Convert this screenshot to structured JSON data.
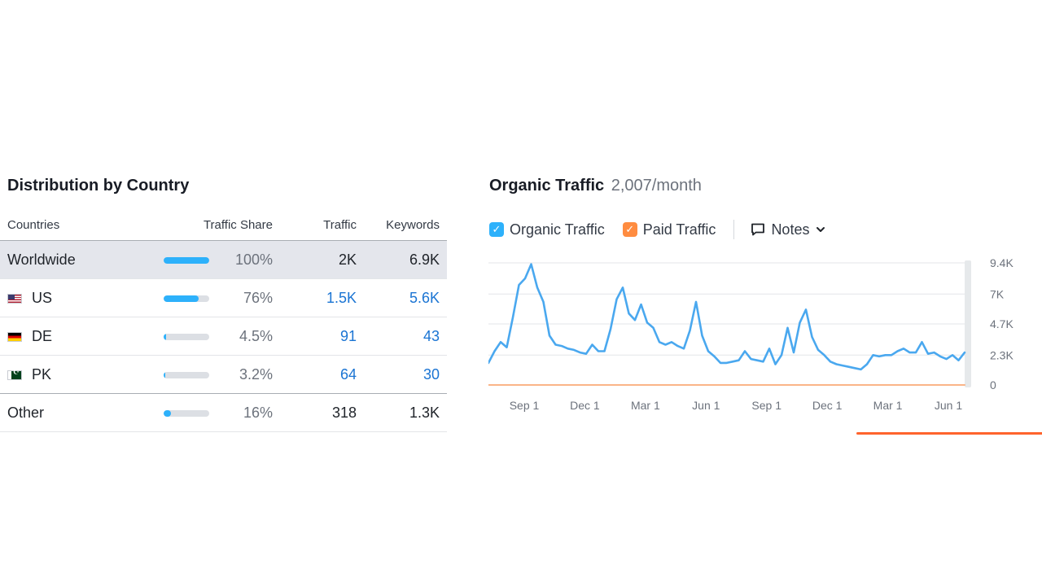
{
  "distribution": {
    "title": "Distribution by Country",
    "columns": {
      "countries": "Countries",
      "traffic_share": "Traffic Share",
      "traffic": "Traffic",
      "keywords": "Keywords"
    },
    "rows": [
      {
        "country": "Worldwide",
        "flag": "",
        "share_label": "100%",
        "share": 1.0,
        "traffic": "2K",
        "keywords": "6.9K"
      },
      {
        "country": "US",
        "flag": "us-flag-icon",
        "share_label": "76%",
        "share": 0.76,
        "traffic": "1.5K",
        "keywords": "5.6K"
      },
      {
        "country": "DE",
        "flag": "de-flag-icon",
        "share_label": "4.5%",
        "share": 0.045,
        "traffic": "91",
        "keywords": "43"
      },
      {
        "country": "PK",
        "flag": "pk-flag-icon",
        "share_label": "3.2%",
        "share": 0.032,
        "traffic": "64",
        "keywords": "30"
      },
      {
        "country": "Other",
        "flag": "",
        "share_label": "16%",
        "share": 0.16,
        "traffic": "318",
        "keywords": "1.3K"
      }
    ],
    "colors": {
      "bar_fill": "#2db1fb",
      "bar_track": "#dcdfe4",
      "link": "#1a74d3",
      "highlight_row": "#e4e6ec"
    }
  },
  "traffic": {
    "title": "Organic Traffic",
    "value": "2,007/month",
    "legend": {
      "organic_label": "Organic Traffic",
      "organic_checked": true,
      "organic_color": "#2db1fb",
      "paid_label": "Paid Traffic",
      "paid_checked": true,
      "paid_color": "#ff8c40"
    },
    "notes": {
      "label": "Notes",
      "icon": "comment-icon",
      "dropdown_icon": "chevron-down-icon"
    }
  },
  "chart_data": {
    "type": "line",
    "x_tick_labels": [
      "Sep 1",
      "Dec 1",
      "Mar 1",
      "Jun 1",
      "Sep 1",
      "Dec 1",
      "Mar 1",
      "Jun 1"
    ],
    "y_tick_labels": [
      "9.4K",
      "7K",
      "4.7K",
      "2.3K",
      "0"
    ],
    "y_ticks": [
      9400,
      7000,
      4700,
      2300,
      0
    ],
    "ylim": [
      0,
      9400
    ],
    "grid": true,
    "series": [
      {
        "name": "Organic Traffic",
        "color": "#4aa8ef",
        "values": [
          1700,
          2600,
          3300,
          2900,
          5200,
          7700,
          8200,
          9300,
          7500,
          6400,
          3800,
          3100,
          3000,
          2800,
          2700,
          2500,
          2400,
          3100,
          2600,
          2600,
          4300,
          6600,
          7500,
          5500,
          5000,
          6200,
          4800,
          4400,
          3300,
          3100,
          3300,
          3000,
          2800,
          4200,
          6400,
          3800,
          2600,
          2200,
          1700,
          1700,
          1800,
          1900,
          2600,
          2000,
          1900,
          1800,
          2800,
          1600,
          2300,
          4400,
          2500,
          4800,
          5800,
          3700,
          2700,
          2300,
          1800,
          1600,
          1500,
          1400,
          1300,
          1200,
          1600,
          2300,
          2200,
          2300,
          2300,
          2600,
          2800,
          2500,
          2500,
          3300,
          2400,
          2500,
          2200,
          2000,
          2300,
          1900,
          2500
        ]
      },
      {
        "name": "Paid Traffic",
        "color": "#ff8c40",
        "values": [
          0,
          0,
          0,
          0,
          0,
          0,
          0,
          0,
          0,
          0,
          0,
          0,
          0,
          0,
          0,
          0,
          0,
          0,
          0,
          0,
          0,
          0,
          0,
          0,
          0,
          0,
          0,
          0,
          0,
          0,
          0,
          0,
          0,
          0,
          0,
          0,
          0,
          0,
          0,
          0,
          0,
          0,
          0,
          0,
          0,
          0,
          0,
          0,
          0,
          0,
          0,
          0,
          0,
          0,
          0,
          0,
          0,
          0,
          0,
          0,
          0,
          0,
          0,
          0,
          0,
          0,
          0,
          0,
          0,
          0,
          0,
          0,
          0,
          0,
          0,
          0,
          0,
          0,
          0
        ]
      }
    ]
  }
}
